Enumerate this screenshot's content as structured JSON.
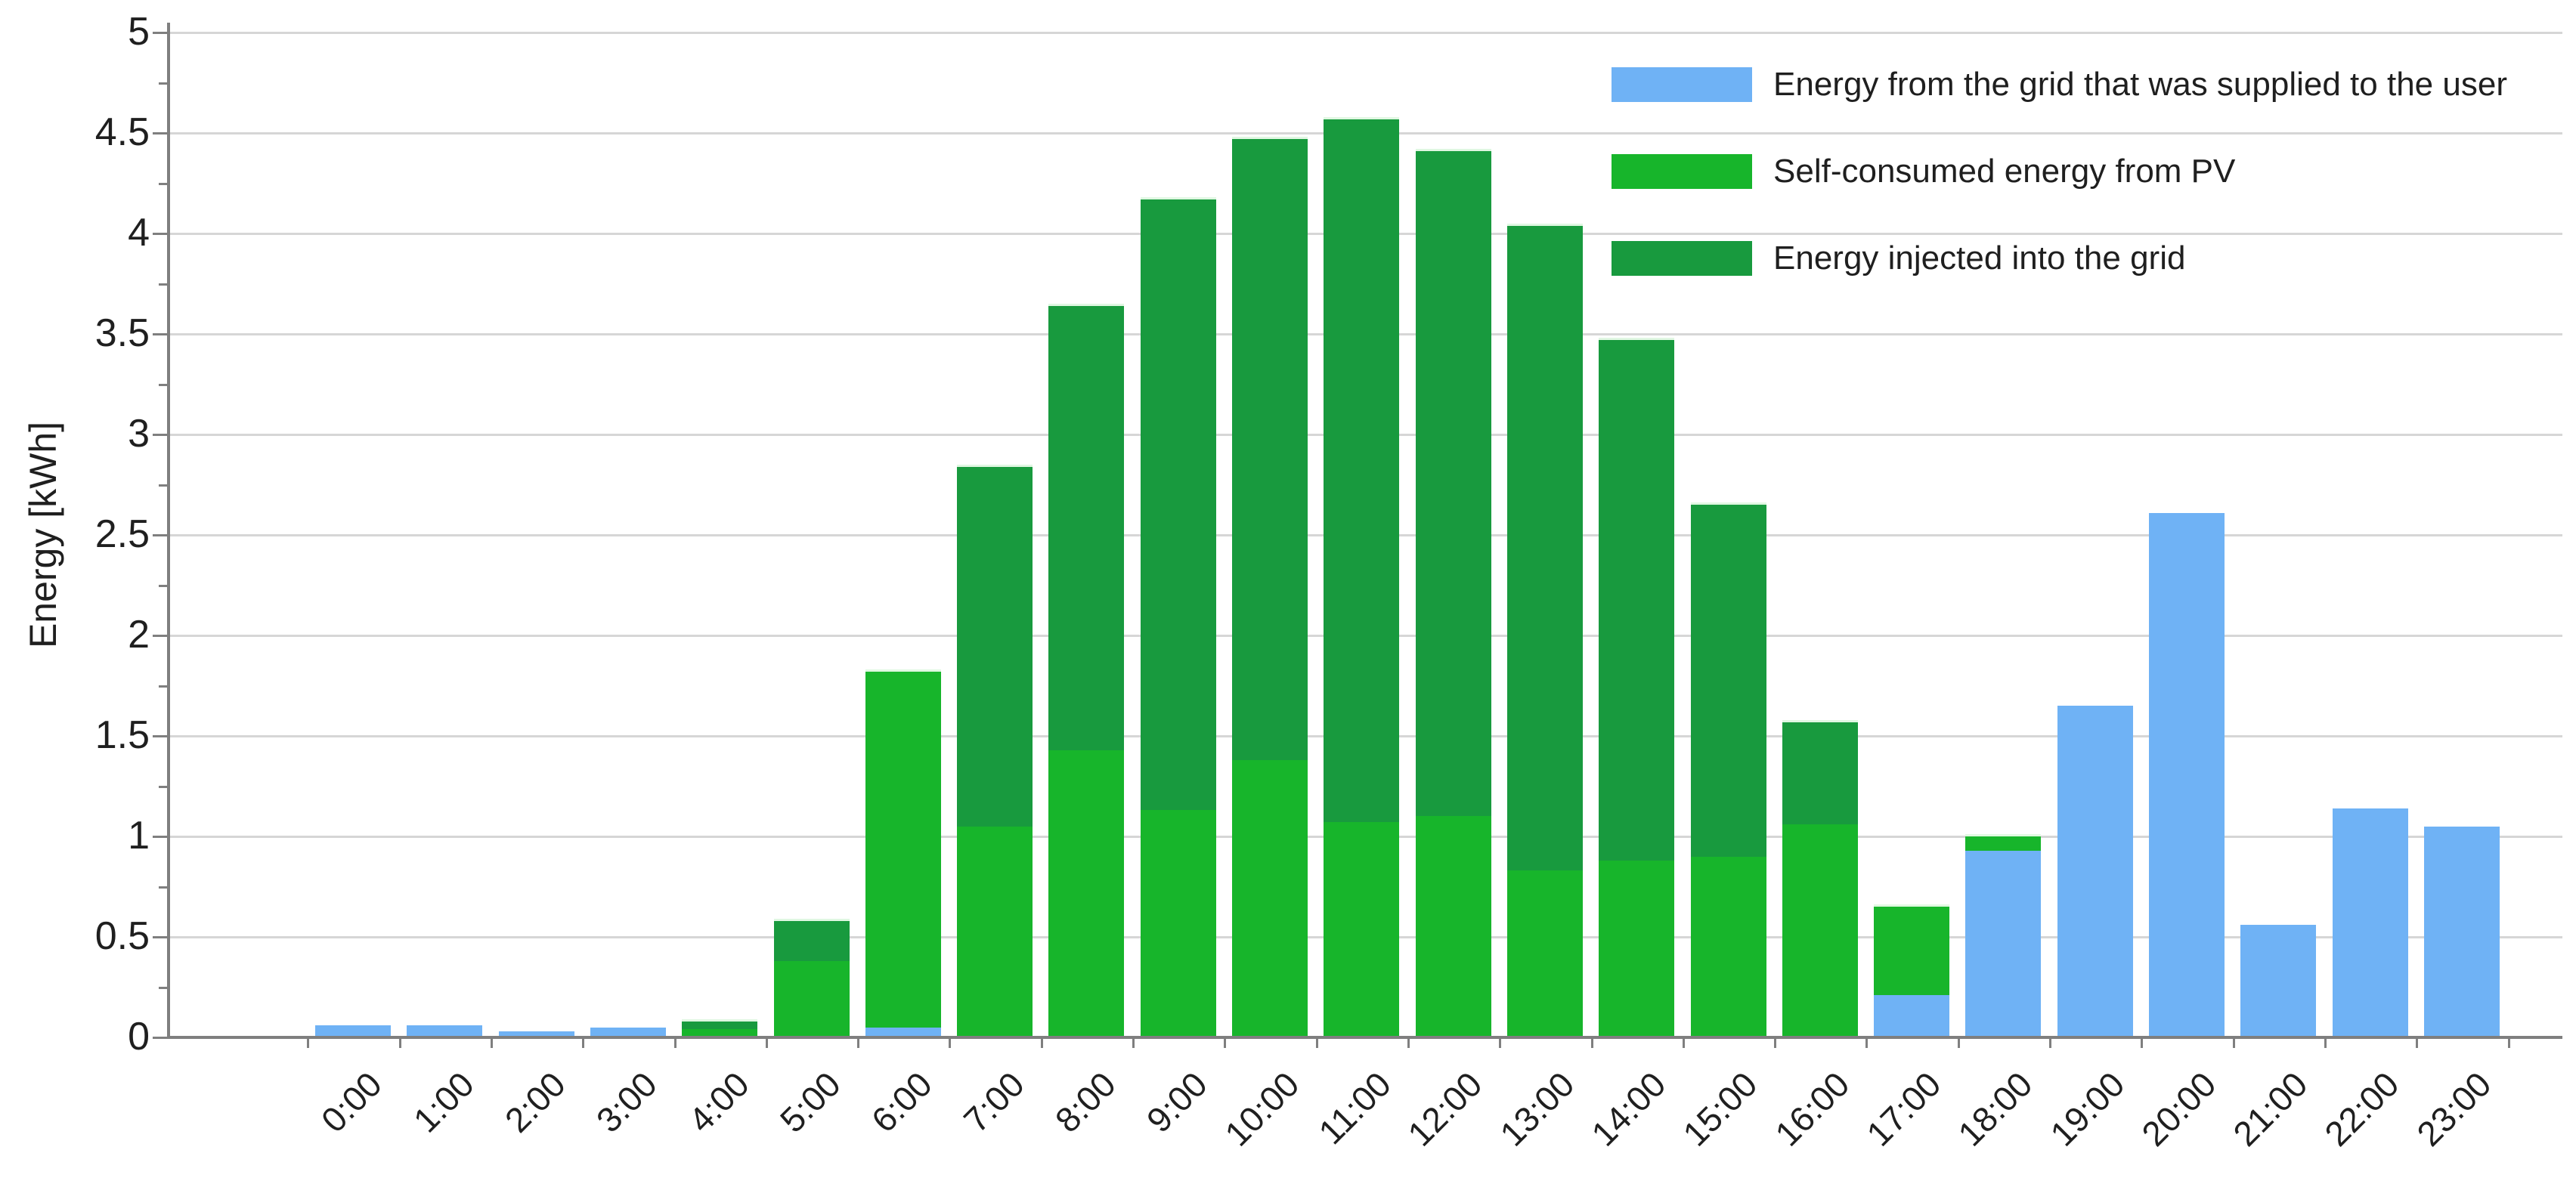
{
  "chart_data": {
    "type": "bar",
    "stacked": true,
    "title": "",
    "xlabel": "",
    "ylabel": "Energy [kWh]",
    "ylim": [
      0,
      5
    ],
    "ytick_step": 0.5,
    "ytick_minor_step": 0.25,
    "y_tick_labels": [
      "0",
      "0.5",
      "1",
      "1.5",
      "2",
      "2.5",
      "3",
      "3.5",
      "4",
      "4.5",
      "5"
    ],
    "grid": "horizontal",
    "legend_position": "top-right",
    "categories": [
      "0:00",
      "1:00",
      "2:00",
      "3:00",
      "4:00",
      "5:00",
      "6:00",
      "7:00",
      "8:00",
      "9:00",
      "10:00",
      "11:00",
      "12:00",
      "13:00",
      "14:00",
      "15:00",
      "16:00",
      "17:00",
      "18:00",
      "19:00",
      "20:00",
      "21:00",
      "22:00",
      "23:00"
    ],
    "series": [
      {
        "name": "Energy from the grid that was supplied to the user",
        "color": "#6FB2F5",
        "values": [
          0.06,
          0.06,
          0.03,
          0.05,
          0,
          0,
          0.05,
          0,
          0,
          0,
          0,
          0,
          0,
          0,
          0,
          0,
          0,
          0.21,
          0.93,
          1.65,
          2.61,
          0.56,
          1.14,
          1.05
        ]
      },
      {
        "name": "Self-consumed energy from PV",
        "color": "#17B52B",
        "values": [
          0,
          0,
          0,
          0,
          0.04,
          0.38,
          1.78,
          1.05,
          1.43,
          1.13,
          1.38,
          1.07,
          1.1,
          0.83,
          0.88,
          0.9,
          1.06,
          0.45,
          0.08,
          0,
          0,
          0,
          0,
          0
        ]
      },
      {
        "name": "Energy injected into the grid",
        "color": "#189A3E",
        "values": [
          0,
          0,
          0,
          0,
          0.05,
          0.21,
          0,
          1.8,
          2.22,
          3.05,
          3.1,
          3.51,
          3.32,
          3.22,
          2.6,
          1.76,
          0.52,
          0,
          0,
          0,
          0,
          0,
          0,
          0
        ]
      }
    ],
    "colors": {
      "gridline": "#d6d6d6",
      "axis_line": "#7f7f7f",
      "text": "#1f1f1f"
    }
  }
}
